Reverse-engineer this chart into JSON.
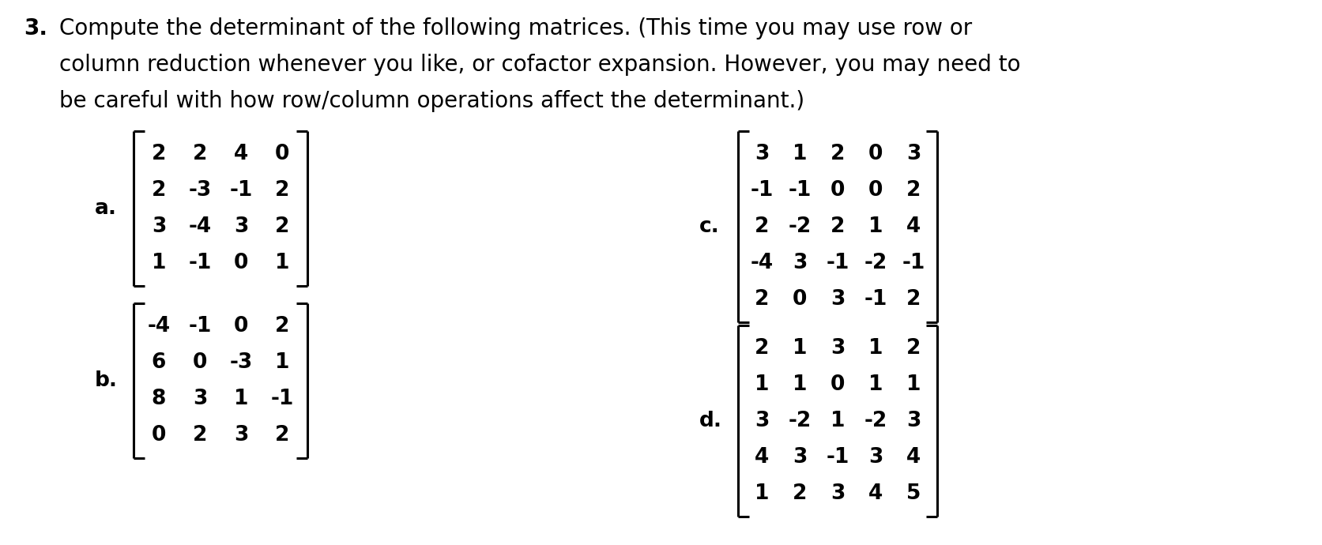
{
  "bg_color": "#ffffff",
  "text_color": "#000000",
  "line0": "Compute the determinant of the following matrices. (This time you may use row or",
  "line1": "column reduction whenever you like, or cofactor expansion. However, you may need to",
  "line2": "be careful with how row/column operations affect the determinant.)",
  "label_a": "a.",
  "label_b": "b.",
  "label_c": "c.",
  "label_d": "d.",
  "matrix_a": [
    [
      2,
      2,
      4,
      0
    ],
    [
      2,
      -3,
      -1,
      2
    ],
    [
      3,
      -4,
      3,
      2
    ],
    [
      1,
      -1,
      0,
      1
    ]
  ],
  "matrix_b": [
    [
      -4,
      -1,
      0,
      2
    ],
    [
      6,
      0,
      -3,
      1
    ],
    [
      8,
      3,
      1,
      -1
    ],
    [
      0,
      2,
      3,
      2
    ]
  ],
  "matrix_c": [
    [
      3,
      1,
      2,
      0,
      3
    ],
    [
      -1,
      -1,
      0,
      0,
      2
    ],
    [
      2,
      -2,
      2,
      1,
      4
    ],
    [
      -4,
      3,
      -1,
      -2,
      -1
    ],
    [
      2,
      0,
      3,
      -1,
      2
    ]
  ],
  "matrix_d": [
    [
      2,
      1,
      3,
      1,
      2
    ],
    [
      1,
      1,
      0,
      1,
      1
    ],
    [
      3,
      -2,
      1,
      -2,
      3
    ],
    [
      4,
      3,
      -1,
      3,
      4
    ],
    [
      1,
      2,
      3,
      4,
      5
    ]
  ],
  "font_size_title": 20,
  "font_size_matrix": 19,
  "font_size_label": 19,
  "fig_width": 16.74,
  "fig_height": 6.9,
  "dpi": 100
}
